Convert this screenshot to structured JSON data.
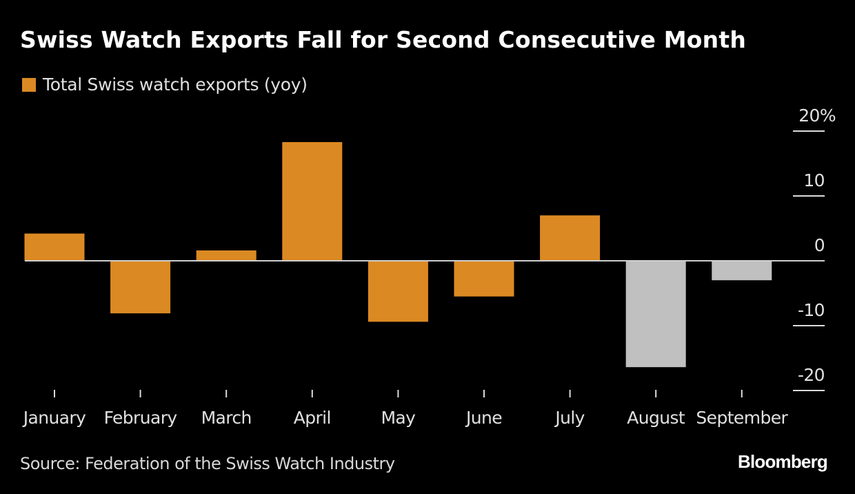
{
  "chart_data": {
    "type": "bar",
    "title": "Swiss Watch Exports Fall for Second Consecutive Month",
    "legend": [
      {
        "label": "Total Swiss watch exports (yoy)",
        "color": "#db8a23"
      }
    ],
    "legend_position": "top-left",
    "categories": [
      "January",
      "February",
      "March",
      "April",
      "May",
      "June",
      "July",
      "August",
      "September"
    ],
    "series": [
      {
        "name": "Total Swiss watch exports (yoy)",
        "values": [
          4.2,
          -8.1,
          1.6,
          18.3,
          -9.4,
          -5.5,
          7.0,
          -16.4,
          -3.0
        ],
        "colors": [
          "#db8a23",
          "#db8a23",
          "#db8a23",
          "#db8a23",
          "#db8a23",
          "#db8a23",
          "#db8a23",
          "#c0c0c0",
          "#c0c0c0"
        ]
      }
    ],
    "y_axis": {
      "position": "right",
      "ticks": [
        20,
        10,
        0,
        -10,
        -20
      ],
      "tick_labels": [
        "20%",
        "10",
        "0",
        "-10",
        "-20"
      ],
      "ylim": [
        -20,
        20
      ]
    },
    "xlabel": "",
    "ylabel": "",
    "grid": false,
    "zero_line": true
  },
  "footer": {
    "source": "Source: Federation of the Swiss Watch Industry",
    "brand": "Bloomberg"
  },
  "colors": {
    "background": "#000000",
    "accent": "#db8a23",
    "highlight_gray": "#c0c0c0",
    "axis": "#e0e0e0"
  }
}
